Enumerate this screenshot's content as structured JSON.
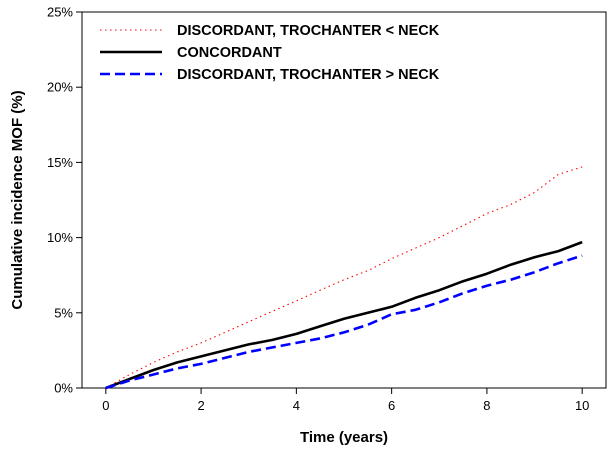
{
  "chart_data": {
    "type": "line",
    "title": "",
    "xlabel": "Time (years)",
    "ylabel": "Cumulative incidence MOF (%)",
    "xlim": [
      -0.5,
      10.5
    ],
    "ylim": [
      0,
      25
    ],
    "xticks": [
      0,
      2,
      4,
      6,
      8,
      10
    ],
    "xtick_labels": [
      "0",
      "2",
      "4",
      "6",
      "8",
      "10"
    ],
    "yticks": [
      0,
      5,
      10,
      15,
      20,
      25
    ],
    "ytick_labels": [
      "0%",
      "5%",
      "10%",
      "15%",
      "20%",
      "25%"
    ],
    "grid": false,
    "legend_position": "top-left",
    "series": [
      {
        "name": "DISCORDANT, TROCHANTER < NECK",
        "color": "#ff0000",
        "style": "dotted",
        "x": [
          0,
          0.5,
          1,
          1.5,
          2,
          2.5,
          3,
          3.5,
          4,
          4.5,
          5,
          5.5,
          6,
          6.5,
          7,
          7.5,
          8,
          8.5,
          9,
          9.5,
          10
        ],
        "y": [
          0,
          0.9,
          1.7,
          2.4,
          3.0,
          3.7,
          4.4,
          5.1,
          5.8,
          6.5,
          7.2,
          7.8,
          8.6,
          9.3,
          10.0,
          10.8,
          11.6,
          12.2,
          13.0,
          14.2,
          14.7
        ]
      },
      {
        "name": "CONCORDANT",
        "color": "#000000",
        "style": "solid",
        "x": [
          0,
          0.5,
          1,
          1.5,
          2,
          2.5,
          3,
          3.5,
          4,
          4.5,
          5,
          5.5,
          6,
          6.5,
          7,
          7.5,
          8,
          8.5,
          9,
          9.5,
          10
        ],
        "y": [
          0,
          0.6,
          1.2,
          1.7,
          2.1,
          2.5,
          2.9,
          3.2,
          3.6,
          4.1,
          4.6,
          5.0,
          5.4,
          6.0,
          6.5,
          7.1,
          7.6,
          8.2,
          8.7,
          9.1,
          9.7
        ]
      },
      {
        "name": "DISCORDANT, TROCHANTER > NECK",
        "color": "#0000ff",
        "style": "dashed",
        "x": [
          0,
          0.5,
          1,
          1.5,
          2,
          2.5,
          3,
          3.5,
          4,
          4.5,
          5,
          5.5,
          6,
          6.5,
          7,
          7.5,
          8,
          8.5,
          9,
          9.5,
          10
        ],
        "y": [
          0,
          0.5,
          0.9,
          1.3,
          1.6,
          2.0,
          2.4,
          2.7,
          3.0,
          3.3,
          3.7,
          4.2,
          4.9,
          5.2,
          5.7,
          6.3,
          6.8,
          7.2,
          7.7,
          8.3,
          8.8
        ]
      }
    ]
  }
}
